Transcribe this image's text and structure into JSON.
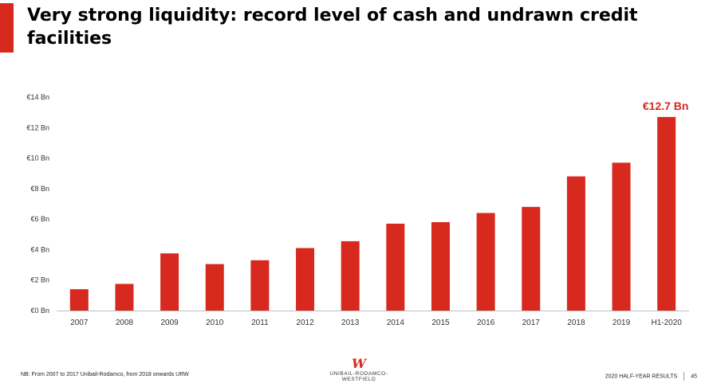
{
  "title": "Very strong liquidity: record level of cash and undrawn credit facilities",
  "footer": {
    "note": "NB: From 2007 to 2017 Unibail-Rodamco, from 2018 onwards URW",
    "logo_mark": "W",
    "logo_text": "UNIBAIL-RODAMCO-WESTFIELD",
    "deck_label": "2020 HALF-YEAR RESULTS",
    "page_number": "45"
  },
  "colors": {
    "accent": "#d7291e",
    "bar": "#d7291e",
    "text": "#333333"
  },
  "chart_data": {
    "type": "bar",
    "categories": [
      "2007",
      "2008",
      "2009",
      "2010",
      "2011",
      "2012",
      "2013",
      "2014",
      "2015",
      "2016",
      "2017",
      "2018",
      "2019",
      "H1-2020"
    ],
    "values": [
      1.4,
      1.75,
      3.75,
      3.05,
      3.3,
      4.1,
      4.55,
      5.7,
      5.8,
      6.4,
      6.8,
      8.8,
      9.7,
      12.7
    ],
    "ylim": [
      0,
      14
    ],
    "yticks": [
      0,
      2,
      4,
      6,
      8,
      10,
      12,
      14
    ],
    "ytick_labels": [
      "€0 Bn",
      "€2 Bn",
      "€4 Bn",
      "€6 Bn",
      "€8 Bn",
      "€10 Bn",
      "€12 Bn",
      "€14 Bn"
    ],
    "annotation": {
      "category": "H1-2020",
      "text": "€12.7 Bn"
    },
    "grid": false
  }
}
